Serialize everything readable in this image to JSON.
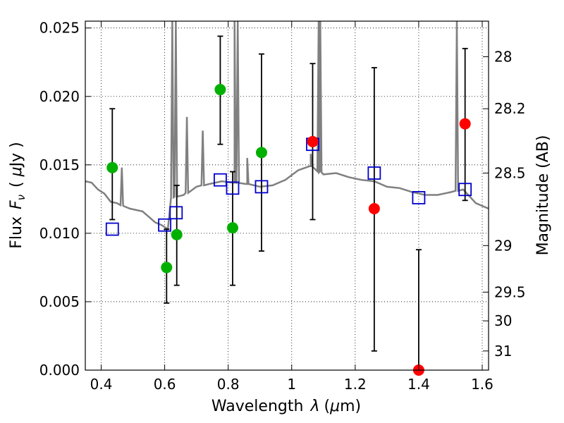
{
  "chart_data": {
    "type": "scatter",
    "xlabel_text": "Wavelength",
    "xlabel_sym": "λ",
    "xlabel_unit_open": "(",
    "xlabel_unit_sym": "μ",
    "xlabel_unit_rest": "m)",
    "ylabel_text": "Flux",
    "ylabel_sym_main": "F",
    "ylabel_sym_sub": "ν",
    "ylabel_unit_open": "( ",
    "ylabel_unit_sym": "μ",
    "ylabel_unit_rest": "Jy )",
    "y2label": "Magnitude (AB)",
    "xlim": [
      0.35,
      1.62
    ],
    "ylim": [
      0.0,
      0.0255
    ],
    "grid": true,
    "x_ticks": [
      0.4,
      0.6,
      0.8,
      1.0,
      1.2,
      1.4,
      1.6
    ],
    "x_tick_labels": [
      "0.4",
      "0.6",
      "0.8",
      "1",
      "1.2",
      "1.4",
      "1.6"
    ],
    "y_ticks": [
      0.0,
      0.005,
      0.01,
      0.015,
      0.02,
      0.025
    ],
    "y_tick_labels": [
      "0.000",
      "0.005",
      "0.010",
      "0.015",
      "0.020",
      "0.025"
    ],
    "y2_ticks": [
      {
        "flux": 0.0229,
        "label": "28"
      },
      {
        "flux": 0.0191,
        "label": "28.2"
      },
      {
        "flux": 0.0144,
        "label": "28.5"
      },
      {
        "flux": 0.0091,
        "label": "29"
      },
      {
        "flux": 0.0057,
        "label": "29.5"
      },
      {
        "flux": 0.0036,
        "label": "30"
      },
      {
        "flux": 0.0014,
        "label": "31"
      }
    ],
    "colors": {
      "model": "#808080",
      "detected": "#00b000",
      "other": "#ff0000",
      "model_flux": "#0000cc",
      "errorbar": "#000000"
    },
    "model_spectrum": {
      "x": [
        0.35,
        0.37,
        0.39,
        0.41,
        0.43,
        0.45,
        0.47,
        0.49,
        0.51,
        0.53,
        0.55,
        0.57,
        0.59,
        0.61,
        0.62,
        0.66,
        0.7,
        0.74,
        0.78,
        0.82,
        0.86,
        0.9,
        0.94,
        0.98,
        1.02,
        1.06,
        1.1,
        1.14,
        1.18,
        1.22,
        1.26,
        1.3,
        1.34,
        1.38,
        1.42,
        1.46,
        1.5,
        1.54,
        1.58,
        1.62
      ],
      "y": [
        0.0138,
        0.0137,
        0.0132,
        0.0129,
        0.0123,
        0.0122,
        0.012,
        0.0118,
        0.0117,
        0.0116,
        0.0112,
        0.0108,
        0.0106,
        0.0103,
        0.0126,
        0.0128,
        0.0134,
        0.0136,
        0.0138,
        0.0137,
        0.0136,
        0.0134,
        0.0135,
        0.0139,
        0.0146,
        0.0149,
        0.0143,
        0.0144,
        0.0141,
        0.0139,
        0.0138,
        0.0134,
        0.0133,
        0.013,
        0.0128,
        0.0128,
        0.013,
        0.0132,
        0.0122,
        0.0118
      ],
      "emission_lines": [
        {
          "x": 0.465,
          "peak": 0.0148
        },
        {
          "x": 0.624,
          "peak": 0.0255
        },
        {
          "x": 0.635,
          "peak": 0.0255
        },
        {
          "x": 0.67,
          "peak": 0.0185
        },
        {
          "x": 0.72,
          "peak": 0.0175
        },
        {
          "x": 0.82,
          "peak": 0.0255
        },
        {
          "x": 0.83,
          "peak": 0.0255
        },
        {
          "x": 0.86,
          "peak": 0.0155
        },
        {
          "x": 1.06,
          "peak": 0.0158
        },
        {
          "x": 1.085,
          "peak": 0.0255
        },
        {
          "x": 1.09,
          "peak": 0.0255
        },
        {
          "x": 1.52,
          "peak": 0.0255
        }
      ]
    },
    "series": [
      {
        "marker": "circle",
        "color": "#00b000",
        "points": [
          {
            "x": 0.435,
            "y": 0.0148
          },
          {
            "x": 0.606,
            "y": 0.0075
          },
          {
            "x": 0.638,
            "y": 0.0099
          },
          {
            "x": 0.775,
            "y": 0.0205
          },
          {
            "x": 0.814,
            "y": 0.0104
          },
          {
            "x": 0.905,
            "y": 0.0159
          }
        ]
      },
      {
        "marker": "circle",
        "color": "#ff0000",
        "points": [
          {
            "x": 1.066,
            "y": 0.0167
          },
          {
            "x": 1.26,
            "y": 0.0118
          },
          {
            "x": 1.4,
            "y": 0.0
          },
          {
            "x": 1.546,
            "y": 0.018
          }
        ]
      },
      {
        "marker": "open-square",
        "color": "#0000cc",
        "points": [
          {
            "x": 0.435,
            "y": 0.0103
          },
          {
            "x": 0.6,
            "y": 0.0106
          },
          {
            "x": 0.636,
            "y": 0.0115
          },
          {
            "x": 0.775,
            "y": 0.0139
          },
          {
            "x": 0.814,
            "y": 0.0133
          },
          {
            "x": 0.905,
            "y": 0.0134
          },
          {
            "x": 1.066,
            "y": 0.0165
          },
          {
            "x": 1.26,
            "y": 0.0144
          },
          {
            "x": 1.4,
            "y": 0.0126
          },
          {
            "x": 1.546,
            "y": 0.0132
          }
        ]
      }
    ],
    "errorbars": [
      {
        "x": 0.435,
        "low": 0.011,
        "high": 0.0191
      },
      {
        "x": 0.606,
        "low": 0.0049,
        "high": 0.0103
      },
      {
        "x": 0.638,
        "low": 0.0062,
        "high": 0.0135
      },
      {
        "x": 0.775,
        "low": 0.0165,
        "high": 0.0244
      },
      {
        "x": 0.814,
        "low": 0.0062,
        "high": 0.0145
      },
      {
        "x": 0.905,
        "low": 0.0087,
        "high": 0.0231
      },
      {
        "x": 1.066,
        "low": 0.011,
        "high": 0.0224
      },
      {
        "x": 1.26,
        "low": 0.0014,
        "high": 0.0221
      },
      {
        "x": 1.4,
        "low": 0.0,
        "high": 0.0088
      },
      {
        "x": 1.546,
        "low": 0.0124,
        "high": 0.0235
      }
    ]
  }
}
